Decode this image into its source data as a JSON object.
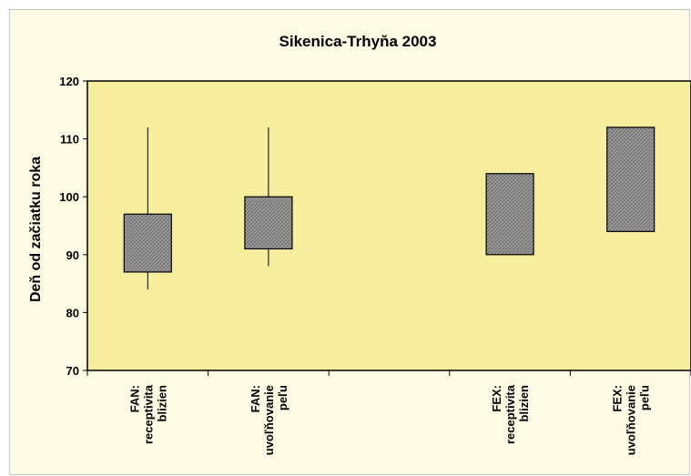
{
  "chart_data": {
    "type": "box",
    "title": "Sikenica-Trhyňa 2003",
    "xlabel": "",
    "ylabel": "Deň od začiatku roka",
    "ylim": [
      70,
      120
    ],
    "yticks": [
      70,
      80,
      90,
      100,
      110,
      120
    ],
    "grid": false,
    "categories": [
      [
        "FAN:",
        "receptivita",
        "blizien"
      ],
      [
        "FAN:",
        "uvoľňovanie",
        "peľu"
      ],
      [
        "",
        "",
        ""
      ],
      [
        "FEX:",
        "receptivita",
        "blizien"
      ],
      [
        "FEX:",
        "uvoľňovanie",
        "peľu"
      ]
    ],
    "boxes": [
      {
        "box_low": 87,
        "box_high": 97,
        "whisker_low": 84,
        "whisker_high": 112
      },
      {
        "box_low": 91,
        "box_high": 100,
        "whisker_low": 88,
        "whisker_high": 112
      },
      null,
      {
        "box_low": 90,
        "box_high": 104,
        "whisker_low": null,
        "whisker_high": null
      },
      {
        "box_low": 94,
        "box_high": 112,
        "whisker_low": null,
        "whisker_high": null
      }
    ],
    "colors": {
      "plot_background": "#f6ee9c",
      "box_fill": "#8f8f8f"
    }
  }
}
